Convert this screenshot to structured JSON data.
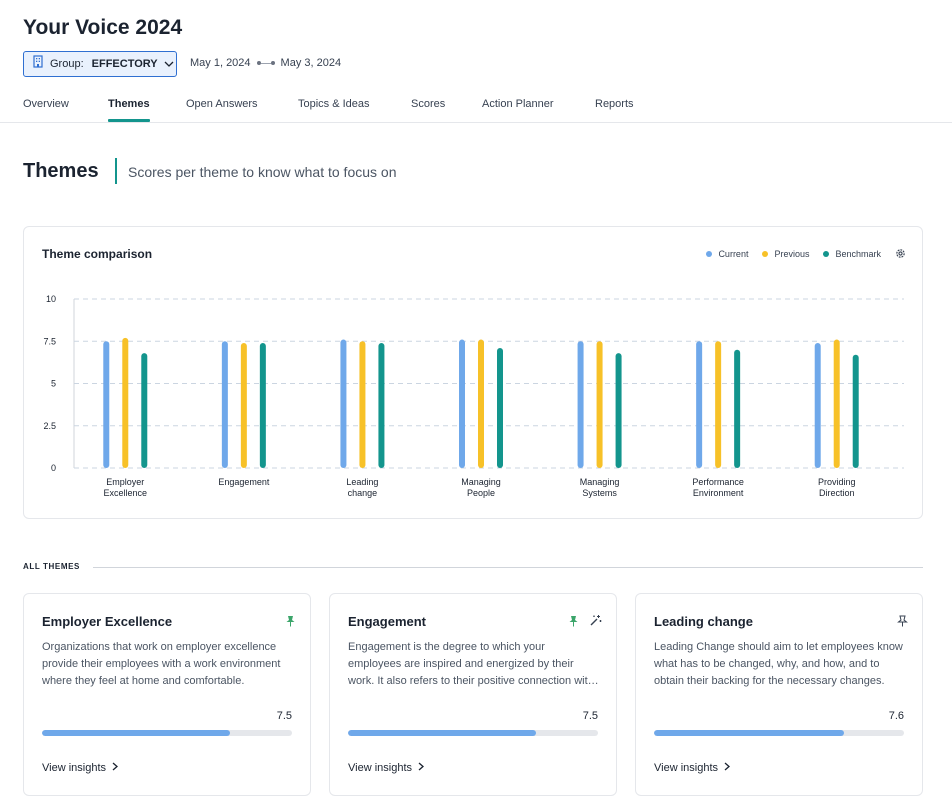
{
  "app": {
    "title": "Your Voice 2024"
  },
  "filters": {
    "group_label": "Group:",
    "group_value": "EFFECTORY",
    "date_start": "May 1, 2024",
    "date_end": "May 3, 2024"
  },
  "tabs": [
    {
      "label": "Overview"
    },
    {
      "label": "Themes",
      "active": true
    },
    {
      "label": "Open Answers"
    },
    {
      "label": "Topics & Ideas"
    },
    {
      "label": "Scores"
    },
    {
      "label": "Action Planner"
    },
    {
      "label": "Reports"
    }
  ],
  "section": {
    "title": "Themes",
    "subtitle": "Scores per theme to know what to focus on"
  },
  "chart_card": {
    "title": "Theme comparison"
  },
  "chart_data": {
    "type": "bar",
    "title": "Theme comparison",
    "categories": [
      [
        "Employer",
        "Excellence"
      ],
      [
        "Engagement"
      ],
      [
        "Leading",
        "change"
      ],
      [
        "Managing",
        "People"
      ],
      [
        "Managing",
        "Systems"
      ],
      [
        "Performance",
        "Environment"
      ],
      [
        "Providing",
        "Direction"
      ]
    ],
    "series": [
      {
        "name": "Current",
        "color": "#6fa8ea",
        "values": [
          7.5,
          7.5,
          7.6,
          7.6,
          7.5,
          7.5,
          7.4
        ]
      },
      {
        "name": "Previous",
        "color": "#f7c128",
        "values": [
          7.7,
          7.4,
          7.5,
          7.6,
          7.5,
          7.5,
          7.6
        ]
      },
      {
        "name": "Benchmark",
        "color": "#13958d",
        "values": [
          6.8,
          7.4,
          7.4,
          7.1,
          6.8,
          7.0,
          6.7
        ]
      }
    ],
    "yticks": [
      "0",
      "2.5",
      "5",
      "7.5",
      "10"
    ],
    "ylim": [
      0,
      10
    ],
    "grid": true,
    "legend": "top-right"
  },
  "all_themes_label": "ALL THEMES",
  "theme_cards": [
    {
      "title": "Employer Excellence",
      "description": "Organizations that work on employer excellence provide their employees with a work environment where they feel at home and comfortable.",
      "score": "7.5",
      "progress": 0.75,
      "link": "View insights",
      "icons": [
        "pin-filled"
      ]
    },
    {
      "title": "Engagement",
      "description": "Engagement is the degree to which your employees are inspired and energized by their work. It also refers to their positive connection with the organization.",
      "score": "7.5",
      "progress": 0.75,
      "link": "View insights",
      "icons": [
        "pin-filled",
        "magic-wand"
      ]
    },
    {
      "title": "Leading change",
      "description": "Leading Change should aim to let employees know what has to be changed, why, and how, and to obtain their backing for the necessary changes.",
      "score": "7.6",
      "progress": 0.76,
      "link": "View insights",
      "icons": [
        "pin-outline"
      ]
    }
  ],
  "colors": {
    "accent": "#13958d",
    "current": "#6fa8ea",
    "previous": "#f7c128",
    "benchmark": "#13958d"
  }
}
